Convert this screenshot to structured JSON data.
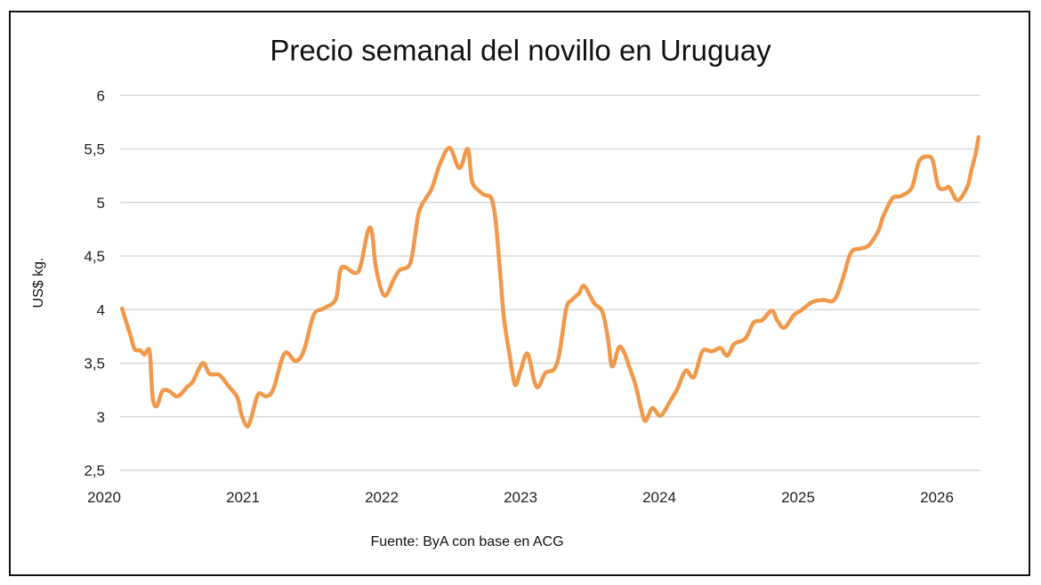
{
  "chart_data": {
    "type": "line",
    "title": "Precio semanal del novillo en Uruguay",
    "xlabel": "",
    "ylabel": "US$ kg.",
    "source": "Fuente: ByA con base en ACG",
    "xlim": [
      2020,
      2026.3
    ],
    "ylim": [
      2.5,
      6
    ],
    "x_ticks": [
      "2020",
      "2021",
      "2022",
      "2023",
      "2024",
      "2025",
      "2026"
    ],
    "y_ticks": [
      "2,5",
      "3",
      "3,5",
      "4",
      "4,5",
      "5",
      "5,5",
      "6"
    ],
    "grid": true,
    "legend": "none",
    "line_color": "#F0994B",
    "grid_color": "#D9D9D9",
    "series": [
      {
        "x": [
          2020.13,
          2020.16,
          2020.19,
          2020.22,
          2020.26,
          2020.29,
          2020.31,
          2020.33,
          2020.35,
          2020.38,
          2020.42,
          2020.47,
          2020.53,
          2020.6,
          2020.64,
          2020.71,
          2020.76,
          2020.83,
          2020.9,
          2020.96,
          2020.99,
          2021.03,
          2021.06,
          2021.11,
          2021.17,
          2021.22,
          2021.3,
          2021.38,
          2021.44,
          2021.51,
          2021.58,
          2021.67,
          2021.71,
          2021.81,
          2021.85,
          2021.9,
          2021.93,
          2021.96,
          2022.02,
          2022.09,
          2022.13,
          2022.19,
          2022.22,
          2022.26,
          2022.29,
          2022.36,
          2022.42,
          2022.49,
          2022.56,
          2022.62,
          2022.65,
          2022.7,
          2022.74,
          2022.79,
          2022.82,
          2022.85,
          2022.88,
          2022.92,
          2022.96,
          2023.0,
          2023.05,
          2023.1,
          2023.13,
          2023.18,
          2023.24,
          2023.28,
          2023.33,
          2023.37,
          2023.42,
          2023.46,
          2023.53,
          2023.59,
          2023.63,
          2023.66,
          2023.71,
          2023.75,
          2023.78,
          2023.83,
          2023.87,
          2023.9,
          2023.95,
          2024.01,
          2024.08,
          2024.13,
          2024.19,
          2024.25,
          2024.31,
          2024.38,
          2024.44,
          2024.49,
          2024.54,
          2024.62,
          2024.68,
          2024.74,
          2024.81,
          2024.85,
          2024.9,
          2024.97,
          2025.02,
          2025.1,
          2025.18,
          2025.26,
          2025.32,
          2025.38,
          2025.45,
          2025.51,
          2025.58,
          2025.61,
          2025.68,
          2025.74,
          2025.82,
          2025.87,
          2025.93,
          2025.97,
          2026.01,
          2026.06,
          2026.09,
          2026.15,
          2026.22,
          2026.25,
          2026.28,
          2026.3
        ],
        "y": [
          4.01,
          3.88,
          3.76,
          3.63,
          3.62,
          3.58,
          3.62,
          3.59,
          3.18,
          3.1,
          3.24,
          3.24,
          3.19,
          3.28,
          3.33,
          3.5,
          3.4,
          3.39,
          3.28,
          3.18,
          3.02,
          2.91,
          2.99,
          3.21,
          3.19,
          3.26,
          3.59,
          3.52,
          3.62,
          3.95,
          4.01,
          4.1,
          4.39,
          4.34,
          4.42,
          4.73,
          4.72,
          4.38,
          4.13,
          4.29,
          4.37,
          4.4,
          4.51,
          4.86,
          4.98,
          5.13,
          5.36,
          5.51,
          5.32,
          5.5,
          5.2,
          5.11,
          5.07,
          5.04,
          4.84,
          4.4,
          3.93,
          3.59,
          3.3,
          3.43,
          3.59,
          3.33,
          3.28,
          3.41,
          3.44,
          3.59,
          4.01,
          4.09,
          4.15,
          4.22,
          4.06,
          3.98,
          3.73,
          3.47,
          3.65,
          3.59,
          3.48,
          3.29,
          3.07,
          2.96,
          3.08,
          3.01,
          3.15,
          3.26,
          3.43,
          3.37,
          3.61,
          3.61,
          3.64,
          3.57,
          3.68,
          3.73,
          3.88,
          3.9,
          3.99,
          3.9,
          3.83,
          3.95,
          3.99,
          4.07,
          4.09,
          4.09,
          4.28,
          4.53,
          4.57,
          4.6,
          4.74,
          4.86,
          5.04,
          5.06,
          5.14,
          5.38,
          5.43,
          5.39,
          5.15,
          5.13,
          5.14,
          5.02,
          5.15,
          5.31,
          5.46,
          5.61
        ]
      }
    ]
  }
}
